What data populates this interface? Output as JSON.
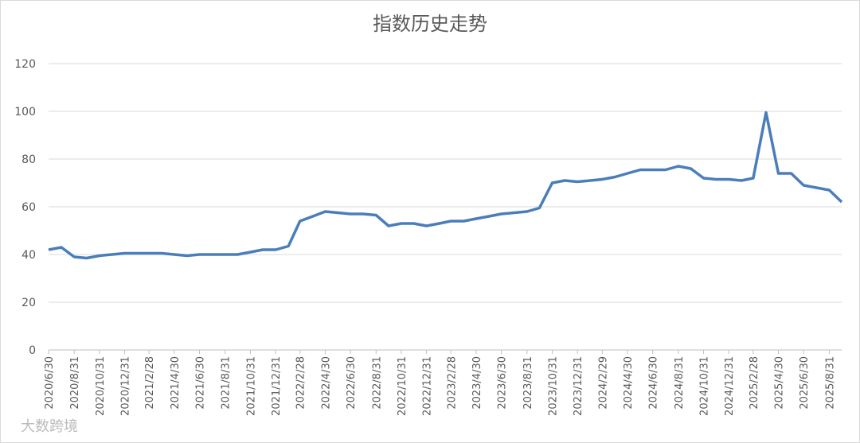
{
  "chart_data": {
    "type": "line",
    "title": "指数历史走势",
    "x": [
      "2020/6/30",
      "2020/7/31",
      "2020/8/31",
      "2020/9/30",
      "2020/10/31",
      "2020/11/30",
      "2020/12/31",
      "2021/1/31",
      "2021/2/28",
      "2021/3/31",
      "2021/4/30",
      "2021/5/31",
      "2021/6/30",
      "2021/7/31",
      "2021/8/31",
      "2021/9/30",
      "2021/10/31",
      "2021/11/30",
      "2021/12/31",
      "2022/1/31",
      "2022/2/28",
      "2022/3/31",
      "2022/4/30",
      "2022/5/31",
      "2022/6/30",
      "2022/7/31",
      "2022/8/31",
      "2022/9/30",
      "2022/10/31",
      "2022/11/30",
      "2022/12/31",
      "2023/1/31",
      "2023/2/28",
      "2023/3/31",
      "2023/4/30",
      "2023/5/31",
      "2023/6/30",
      "2023/7/31",
      "2023/8/31",
      "2023/9/30",
      "2023/10/31",
      "2023/11/30",
      "2023/12/31",
      "2024/1/31",
      "2024/2/29",
      "2024/3/31",
      "2024/4/30",
      "2024/5/31",
      "2024/6/30",
      "2024/7/31",
      "2024/8/31",
      "2024/9/30",
      "2024/10/31",
      "2024/11/30",
      "2024/12/31",
      "2025/1/31",
      "2025/2/28",
      "2025/3/31",
      "2025/4/30",
      "2025/5/31",
      "2025/6/30",
      "2025/7/31",
      "2025/8/31",
      "2025/9/30"
    ],
    "series": [
      {
        "name": "指数",
        "color": "#4a7ebb",
        "values": [
          42,
          43,
          39,
          38.5,
          39.5,
          40,
          40.5,
          40.5,
          40.5,
          40.5,
          40,
          39.5,
          40,
          40,
          40,
          40,
          41,
          42,
          42,
          43.5,
          54,
          56,
          58,
          57.5,
          57,
          57,
          56.5,
          52,
          53,
          53,
          52,
          53,
          54,
          54,
          55,
          56,
          57,
          57.5,
          58,
          59.5,
          70,
          71,
          70.5,
          71,
          71.5,
          72.5,
          74,
          75.5,
          75.5,
          75.5,
          77,
          76,
          72,
          71.5,
          71.5,
          71,
          72,
          99.5,
          74,
          74,
          69,
          68,
          67,
          62
        ]
      }
    ],
    "xlim": [
      "2020/6/30",
      "2025/9/30"
    ],
    "xticks": [
      "2020/6/30",
      "2020/8/31",
      "2020/10/31",
      "2020/12/31",
      "2021/2/28",
      "2021/4/30",
      "2021/6/30",
      "2021/8/31",
      "2021/10/31",
      "2021/12/31",
      "2022/2/28",
      "2022/4/30",
      "2022/6/30",
      "2022/8/31",
      "2022/10/31",
      "2022/12/31",
      "2023/2/28",
      "2023/4/30",
      "2023/6/30",
      "2023/8/31",
      "2023/10/31",
      "2023/12/31",
      "2024/2/29",
      "2024/4/30",
      "2024/6/30",
      "2024/8/31",
      "2024/10/31",
      "2024/12/31",
      "2025/2/28",
      "2025/4/30",
      "2025/6/30",
      "2025/8/31"
    ],
    "ylim": [
      0,
      120
    ],
    "yticks": [
      0,
      20,
      40,
      60,
      80,
      100,
      120
    ],
    "grid": true,
    "watermark": "大数跨境"
  }
}
